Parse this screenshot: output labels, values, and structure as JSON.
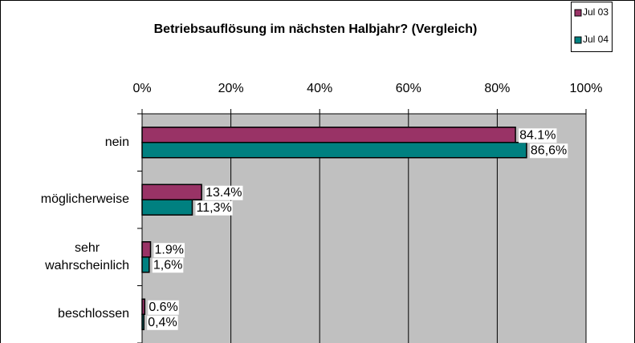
{
  "chart_data": {
    "type": "barh",
    "title": "Betriebsauflösung im nächsten Halbjahr? (Vergleich)",
    "categories": [
      "nein",
      "möglicherweise",
      "sehr\nwahrscheinlich",
      "beschlossen"
    ],
    "series": [
      {
        "name": "Jul 03",
        "color": "#993366",
        "values": [
          84.1,
          13.4,
          1.9,
          0.6
        ],
        "value_labels": [
          "84.1%",
          "13.4%",
          "1.9%",
          "0.6%"
        ]
      },
      {
        "name": "Jul 04",
        "color": "#008080",
        "values": [
          86.6,
          11.3,
          1.6,
          0.4
        ],
        "value_labels": [
          "86,6%",
          "11,3%",
          "1,6%",
          "0,4%"
        ]
      }
    ],
    "xlim": [
      0,
      100
    ],
    "xticks": [
      {
        "value": 0,
        "label": "0%"
      },
      {
        "value": 20,
        "label": "20%"
      },
      {
        "value": 40,
        "label": "40%"
      },
      {
        "value": 60,
        "label": "60%"
      },
      {
        "value": 80,
        "label": "80%"
      },
      {
        "value": 100,
        "label": "100%"
      }
    ],
    "grid": true,
    "legend": "top-right",
    "plot_color": "#c0c0c0"
  }
}
